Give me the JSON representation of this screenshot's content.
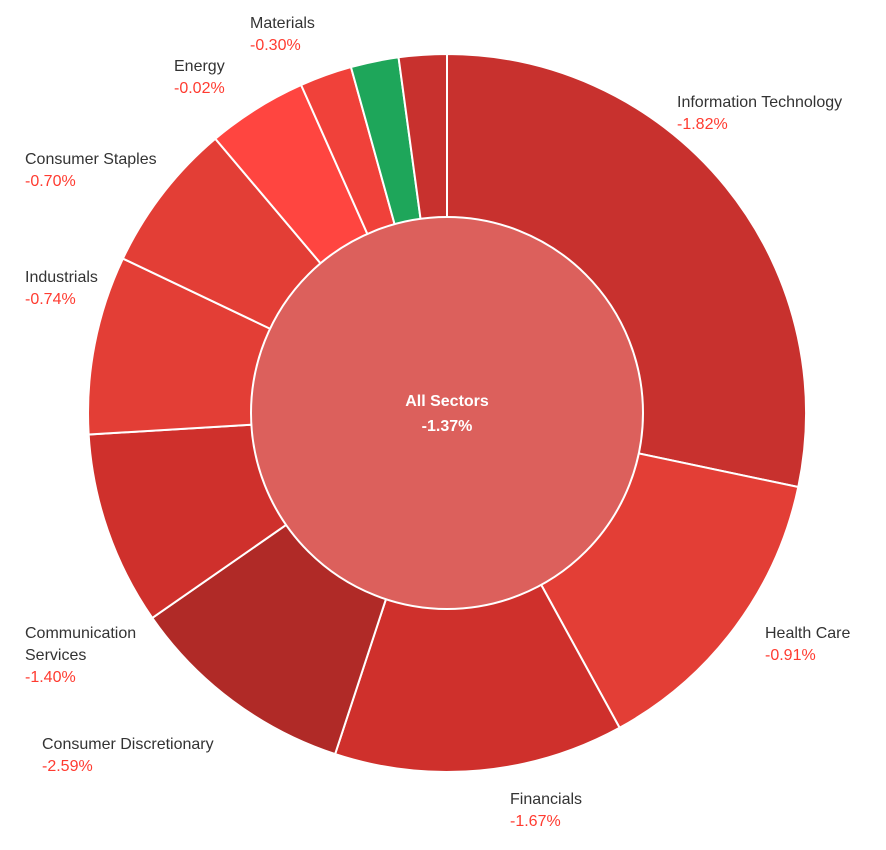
{
  "chart_data": {
    "type": "pie",
    "center": {
      "label": "All Sectors",
      "value": "-1.37%",
      "color": "#dc605c"
    },
    "legend": "none",
    "series": [
      {
        "name": "Information Technology",
        "change": "-1.82%",
        "value": 28.9,
        "color": "#c8312e",
        "label": [
          "Information Technology"
        ],
        "show_label": true
      },
      {
        "name": "Health Care",
        "change": "-0.91%",
        "value": 14.0,
        "color": "#e33e36",
        "label": [
          "Health Care"
        ],
        "show_label": true
      },
      {
        "name": "Financials",
        "change": "-1.67%",
        "value": 13.3,
        "color": "#cf302c",
        "label": [
          "Financials"
        ],
        "show_label": true
      },
      {
        "name": "Consumer Discretionary",
        "change": "-2.59%",
        "value": 10.5,
        "color": "#b02a27",
        "label": [
          "Consumer Discretionary"
        ],
        "show_label": true
      },
      {
        "name": "Communication Services",
        "change": "-1.40%",
        "value": 8.9,
        "color": "#cf302c",
        "label": [
          "Communication",
          "Services"
        ],
        "show_label": true
      },
      {
        "name": "Industrials",
        "change": "-0.74%",
        "value": 8.2,
        "color": "#e33e36",
        "label": [
          "Industrials"
        ],
        "show_label": true
      },
      {
        "name": "Consumer Staples",
        "change": "-0.70%",
        "value": 6.9,
        "color": "#e33e36",
        "label": [
          "Consumer Staples"
        ],
        "show_label": true
      },
      {
        "name": "Energy",
        "change": "-0.02%",
        "value": 4.6,
        "color": "#ff4540",
        "label": [
          "Energy"
        ],
        "show_label": true
      },
      {
        "name": "Materials",
        "change": "-0.30%",
        "value": 2.4,
        "color": "#f0413a",
        "label": [
          "Materials"
        ],
        "show_label": true
      },
      {
        "name": "",
        "change": "",
        "value": 2.2,
        "color": "#1ea65a",
        "label": [],
        "show_label": false
      },
      {
        "name": "",
        "change": "",
        "value": 2.2,
        "color": "#c8312e",
        "label": [],
        "show_label": false
      }
    ]
  }
}
